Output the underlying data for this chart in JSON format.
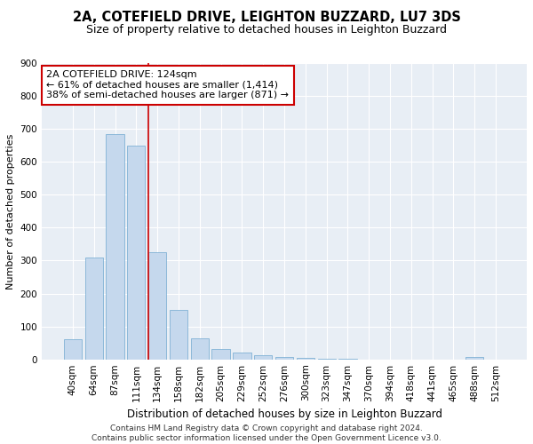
{
  "title1": "2A, COTEFIELD DRIVE, LEIGHTON BUZZARD, LU7 3DS",
  "title2": "Size of property relative to detached houses in Leighton Buzzard",
  "xlabel": "Distribution of detached houses by size in Leighton Buzzard",
  "ylabel": "Number of detached properties",
  "categories": [
    "40sqm",
    "64sqm",
    "87sqm",
    "111sqm",
    "134sqm",
    "158sqm",
    "182sqm",
    "205sqm",
    "229sqm",
    "252sqm",
    "276sqm",
    "300sqm",
    "323sqm",
    "347sqm",
    "370sqm",
    "394sqm",
    "418sqm",
    "441sqm",
    "465sqm",
    "488sqm",
    "512sqm"
  ],
  "values": [
    62,
    310,
    685,
    650,
    325,
    150,
    65,
    32,
    20,
    12,
    8,
    5,
    3,
    1,
    0,
    0,
    0,
    0,
    0,
    8,
    0
  ],
  "bar_color": "#c5d8ed",
  "bar_edge_color": "#6fa8d0",
  "bg_color": "#e8eef5",
  "grid_color": "#ffffff",
  "annotation_line1": "2A COTEFIELD DRIVE: 124sqm",
  "annotation_line2": "← 61% of detached houses are smaller (1,414)",
  "annotation_line3": "38% of semi-detached houses are larger (871) →",
  "annotation_box_color": "#cc0000",
  "vline_color": "#cc0000",
  "ylim": [
    0,
    900
  ],
  "yticks": [
    0,
    100,
    200,
    300,
    400,
    500,
    600,
    700,
    800,
    900
  ],
  "footer": "Contains HM Land Registry data © Crown copyright and database right 2024.\nContains public sector information licensed under the Open Government Licence v3.0.",
  "title1_fontsize": 10.5,
  "title2_fontsize": 9,
  "xlabel_fontsize": 8.5,
  "ylabel_fontsize": 8,
  "tick_fontsize": 7.5,
  "annotation_fontsize": 8,
  "footer_fontsize": 6.5
}
